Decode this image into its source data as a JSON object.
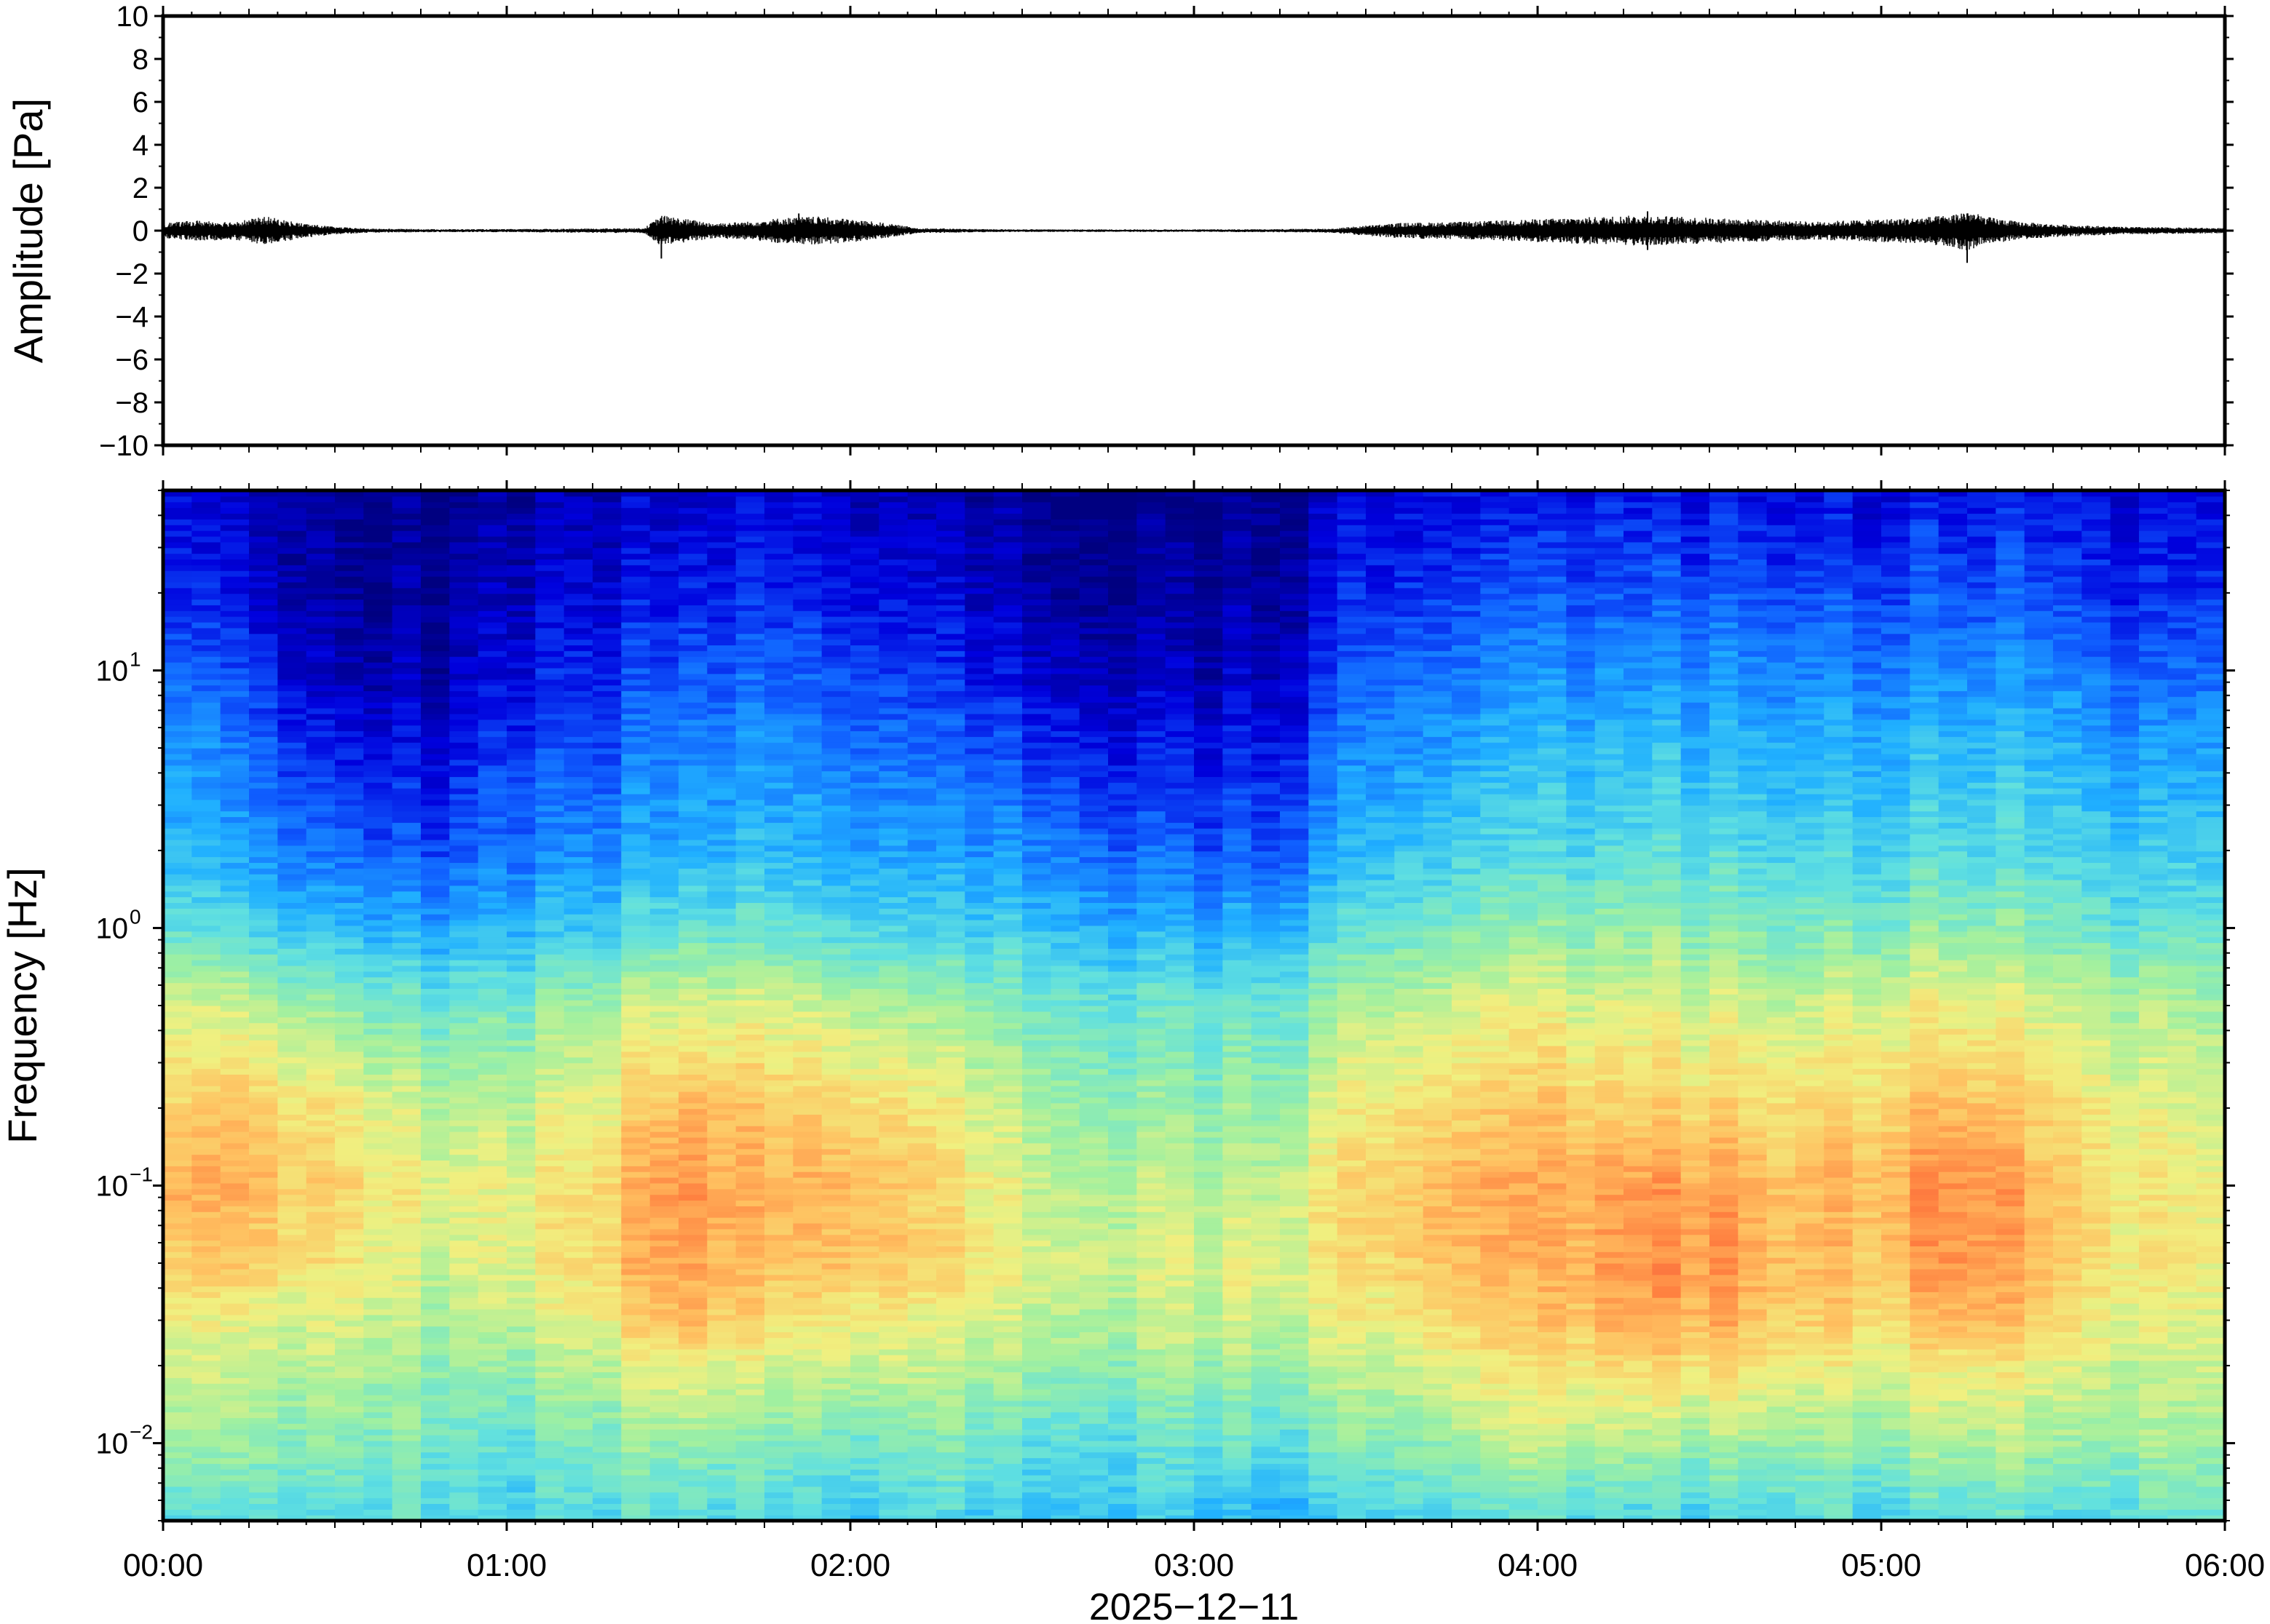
{
  "chart_data": [
    {
      "type": "line",
      "panel": "waveform",
      "ylabel": "Amplitude [Pa]",
      "ylim": [
        -10,
        10
      ],
      "yticks": [
        10,
        8,
        6,
        4,
        2,
        0,
        -2,
        -4,
        -6,
        -8,
        -10
      ],
      "ytick_labels": [
        "10",
        "8",
        "6",
        "4",
        "2",
        "0",
        "−2",
        "−4",
        "−6",
        "−8",
        "−10"
      ],
      "x_unit": "hours",
      "xlim": [
        0,
        6
      ],
      "envelope": {
        "x": [
          0.0,
          0.1,
          0.2,
          0.3,
          0.4,
          0.5,
          0.6,
          0.8,
          1.0,
          1.2,
          1.4,
          1.45,
          1.5,
          1.6,
          1.7,
          1.8,
          1.9,
          2.0,
          2.1,
          2.2,
          2.4,
          2.6,
          2.8,
          3.0,
          3.2,
          3.4,
          3.5,
          3.6,
          3.8,
          4.0,
          4.1,
          4.2,
          4.3,
          4.4,
          4.5,
          4.6,
          4.7,
          4.8,
          4.9,
          5.0,
          5.1,
          5.2,
          5.25,
          5.3,
          5.4,
          5.5,
          5.7,
          5.9,
          6.0
        ],
        "amplitude": [
          0.3,
          0.4,
          0.35,
          0.55,
          0.3,
          0.15,
          0.08,
          0.06,
          0.06,
          0.08,
          0.1,
          0.6,
          0.5,
          0.3,
          0.35,
          0.5,
          0.55,
          0.45,
          0.3,
          0.1,
          0.06,
          0.05,
          0.05,
          0.05,
          0.06,
          0.08,
          0.2,
          0.3,
          0.35,
          0.45,
          0.5,
          0.55,
          0.6,
          0.55,
          0.5,
          0.45,
          0.4,
          0.35,
          0.4,
          0.45,
          0.5,
          0.6,
          0.8,
          0.55,
          0.35,
          0.25,
          0.15,
          0.12,
          0.1
        ]
      },
      "spikes": [
        {
          "x": 1.45,
          "min": -1.3,
          "max": 0.6
        },
        {
          "x": 1.85,
          "min": -0.5,
          "max": 0.8
        },
        {
          "x": 4.32,
          "min": -0.9,
          "max": 0.9
        },
        {
          "x": 5.25,
          "min": -1.5,
          "max": 0.8
        }
      ]
    },
    {
      "type": "heatmap",
      "panel": "spectrogram",
      "ylabel": "Frequency [Hz]",
      "yscale": "log",
      "ylim": [
        0.005,
        50
      ],
      "yticks": [
        {
          "value": 10,
          "base": "10",
          "exp": "1"
        },
        {
          "value": 1,
          "base": "10",
          "exp": "0"
        },
        {
          "value": 0.1,
          "base": "10",
          "exp": "−1"
        },
        {
          "value": 0.01,
          "base": "10",
          "exp": "−2"
        }
      ],
      "xlabel": "2025−12−11",
      "xlim": [
        0,
        6
      ],
      "xticks": [
        0,
        1,
        2,
        3,
        4,
        5,
        6
      ],
      "xtick_labels": [
        "00:00",
        "01:00",
        "02:00",
        "03:00",
        "04:00",
        "05:00",
        "06:00"
      ],
      "colormap": "jet",
      "colormap_stops": [
        "#000080",
        "#0000dd",
        "#1060ff",
        "#20b0ff",
        "#60e0e0",
        "#a0f0a0",
        "#f0f080",
        "#ffc060",
        "#ff8040",
        "#e84040"
      ],
      "intensity": {
        "freq_hz": [
          0.005,
          0.01,
          0.02,
          0.03,
          0.05,
          0.1,
          0.2,
          0.5,
          1,
          2,
          5,
          10,
          20,
          50
        ],
        "time_h": [
          0.0,
          0.25,
          0.5,
          0.75,
          1.0,
          1.25,
          1.5,
          1.75,
          2.0,
          2.25,
          2.5,
          2.75,
          3.0,
          3.25,
          3.5,
          3.75,
          4.0,
          4.25,
          4.5,
          4.75,
          5.0,
          5.25,
          5.5,
          5.75,
          6.0
        ],
        "values": [
          [
            0.4,
            0.45,
            0.42,
            0.45,
            0.4,
            0.42,
            0.45,
            0.42,
            0.4,
            0.42,
            0.35,
            0.4,
            0.35,
            0.33,
            0.4,
            0.42,
            0.45,
            0.42,
            0.4,
            0.45,
            0.42,
            0.45,
            0.42,
            0.45,
            0.45
          ],
          [
            0.55,
            0.55,
            0.5,
            0.5,
            0.45,
            0.5,
            0.55,
            0.5,
            0.5,
            0.5,
            0.45,
            0.45,
            0.45,
            0.45,
            0.5,
            0.55,
            0.6,
            0.6,
            0.55,
            0.55,
            0.55,
            0.6,
            0.55,
            0.55,
            0.55
          ],
          [
            0.6,
            0.62,
            0.58,
            0.55,
            0.55,
            0.58,
            0.7,
            0.62,
            0.65,
            0.6,
            0.55,
            0.55,
            0.55,
            0.55,
            0.6,
            0.65,
            0.7,
            0.72,
            0.72,
            0.68,
            0.65,
            0.7,
            0.65,
            0.6,
            0.6
          ],
          [
            0.65,
            0.65,
            0.62,
            0.58,
            0.6,
            0.65,
            0.8,
            0.7,
            0.7,
            0.65,
            0.6,
            0.6,
            0.6,
            0.62,
            0.65,
            0.72,
            0.75,
            0.82,
            0.8,
            0.75,
            0.72,
            0.82,
            0.72,
            0.65,
            0.62
          ],
          [
            0.72,
            0.75,
            0.68,
            0.62,
            0.65,
            0.7,
            0.85,
            0.75,
            0.8,
            0.72,
            0.65,
            0.62,
            0.62,
            0.65,
            0.7,
            0.78,
            0.78,
            0.85,
            0.85,
            0.78,
            0.78,
            0.88,
            0.75,
            0.68,
            0.65
          ],
          [
            0.8,
            0.8,
            0.72,
            0.65,
            0.65,
            0.7,
            0.88,
            0.78,
            0.82,
            0.72,
            0.62,
            0.6,
            0.58,
            0.62,
            0.72,
            0.8,
            0.8,
            0.85,
            0.82,
            0.78,
            0.8,
            0.9,
            0.75,
            0.68,
            0.65
          ],
          [
            0.72,
            0.75,
            0.68,
            0.6,
            0.6,
            0.65,
            0.8,
            0.75,
            0.75,
            0.68,
            0.58,
            0.55,
            0.52,
            0.55,
            0.68,
            0.72,
            0.75,
            0.75,
            0.72,
            0.72,
            0.75,
            0.8,
            0.72,
            0.65,
            0.6
          ],
          [
            0.62,
            0.62,
            0.52,
            0.48,
            0.5,
            0.55,
            0.65,
            0.62,
            0.62,
            0.55,
            0.5,
            0.48,
            0.45,
            0.48,
            0.58,
            0.62,
            0.65,
            0.65,
            0.62,
            0.62,
            0.65,
            0.68,
            0.62,
            0.58,
            0.55
          ],
          [
            0.45,
            0.42,
            0.35,
            0.32,
            0.35,
            0.38,
            0.48,
            0.45,
            0.45,
            0.4,
            0.38,
            0.35,
            0.32,
            0.35,
            0.45,
            0.5,
            0.52,
            0.55,
            0.52,
            0.5,
            0.52,
            0.55,
            0.5,
            0.45,
            0.45
          ],
          [
            0.35,
            0.3,
            0.22,
            0.2,
            0.25,
            0.28,
            0.35,
            0.35,
            0.35,
            0.3,
            0.28,
            0.25,
            0.2,
            0.22,
            0.35,
            0.4,
            0.42,
            0.45,
            0.42,
            0.42,
            0.42,
            0.45,
            0.42,
            0.38,
            0.38
          ],
          [
            0.3,
            0.25,
            0.12,
            0.1,
            0.18,
            0.2,
            0.28,
            0.28,
            0.28,
            0.22,
            0.18,
            0.15,
            0.12,
            0.15,
            0.28,
            0.32,
            0.35,
            0.38,
            0.35,
            0.35,
            0.35,
            0.38,
            0.35,
            0.3,
            0.3
          ],
          [
            0.22,
            0.18,
            0.05,
            0.05,
            0.12,
            0.15,
            0.22,
            0.22,
            0.22,
            0.15,
            0.1,
            0.08,
            0.05,
            0.08,
            0.22,
            0.25,
            0.28,
            0.3,
            0.28,
            0.28,
            0.28,
            0.3,
            0.28,
            0.22,
            0.22
          ],
          [
            0.15,
            0.12,
            0.02,
            0.02,
            0.08,
            0.1,
            0.15,
            0.15,
            0.15,
            0.1,
            0.05,
            0.03,
            0.02,
            0.05,
            0.15,
            0.18,
            0.2,
            0.22,
            0.2,
            0.2,
            0.2,
            0.22,
            0.2,
            0.15,
            0.15
          ],
          [
            0.1,
            0.08,
            0.0,
            0.0,
            0.05,
            0.05,
            0.1,
            0.1,
            0.1,
            0.05,
            0.02,
            0.0,
            0.0,
            0.02,
            0.1,
            0.12,
            0.12,
            0.15,
            0.12,
            0.12,
            0.12,
            0.15,
            0.12,
            0.1,
            0.1
          ]
        ]
      }
    }
  ]
}
